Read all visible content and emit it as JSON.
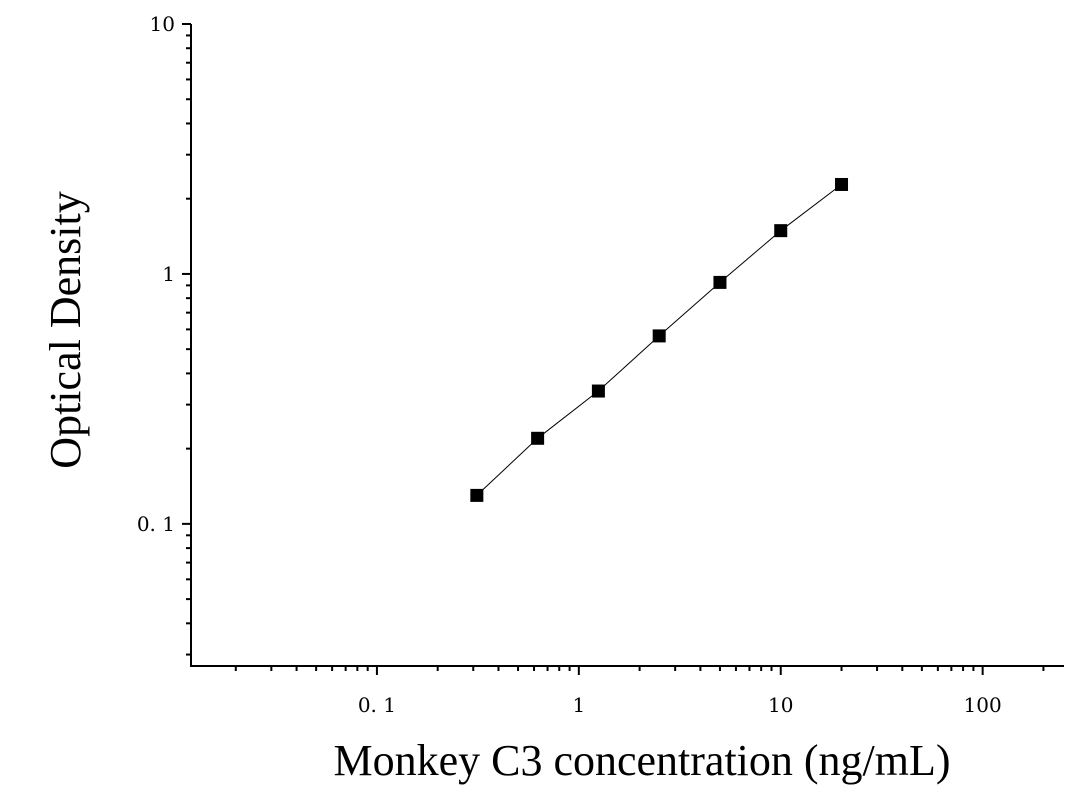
{
  "chart_data": {
    "type": "scatter",
    "title": "",
    "xlabel": "Monkey C3 concentration (ng/mL)",
    "ylabel": "Optical Density",
    "xscale": "log",
    "yscale": "log",
    "xlim": [
      0.012,
      250
    ],
    "ylim": [
      0.027,
      10
    ],
    "grid": false,
    "legend": "none",
    "x_ticks": [
      {
        "value": 0.1,
        "label": "0. 1"
      },
      {
        "value": 1,
        "label": "1"
      },
      {
        "value": 10,
        "label": "10"
      },
      {
        "value": 100,
        "label": "100"
      }
    ],
    "y_ticks": [
      {
        "value": 0.1,
        "label": "0. 1"
      },
      {
        "value": 1,
        "label": "1"
      },
      {
        "value": 10,
        "label": "10"
      }
    ],
    "series": [
      {
        "x": [
          0.3125,
          0.625,
          1.25,
          2.5,
          5,
          10,
          20
        ],
        "y": [
          0.13,
          0.22,
          0.34,
          0.565,
          0.925,
          1.49,
          2.28
        ],
        "marker": "square",
        "color": "#000000",
        "fit_line": true
      }
    ]
  }
}
